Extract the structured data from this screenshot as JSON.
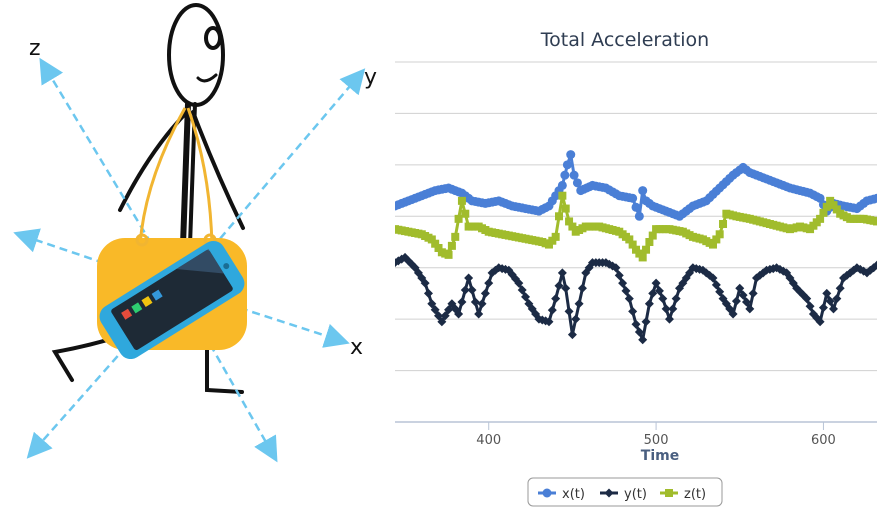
{
  "illustration": {
    "axis_labels": {
      "z": "z",
      "y": "y",
      "x": "x"
    },
    "colors": {
      "axis": "#6cc7ef",
      "bag": "#f9b928",
      "strap": "#f1b531",
      "phone_body": "#2fa8dd",
      "phone_screen": "#1e2a36"
    }
  },
  "chart_data": {
    "type": "line",
    "title": "Total Acceleration",
    "xlabel": "Time",
    "ylabel": "",
    "xlim": [
      344,
      632
    ],
    "ylim": [
      0,
      7
    ],
    "x_ticks": [
      400,
      500,
      600
    ],
    "grid": true,
    "legend_position": "bottom-center",
    "series": [
      {
        "name": "x(t)",
        "color": "#4a7fd6",
        "marker": "circle",
        "points": [
          [
            344,
            4.2
          ],
          [
            352,
            4.3
          ],
          [
            360,
            4.4
          ],
          [
            368,
            4.5
          ],
          [
            376,
            4.55
          ],
          [
            384,
            4.45
          ],
          [
            390,
            4.3
          ],
          [
            398,
            4.25
          ],
          [
            406,
            4.3
          ],
          [
            414,
            4.2
          ],
          [
            422,
            4.15
          ],
          [
            430,
            4.1
          ],
          [
            436,
            4.2
          ],
          [
            440,
            4.4
          ],
          [
            444,
            4.6
          ],
          [
            447,
            5.0
          ],
          [
            449,
            5.2
          ],
          [
            451,
            4.8
          ],
          [
            455,
            4.5
          ],
          [
            462,
            4.6
          ],
          [
            470,
            4.55
          ],
          [
            478,
            4.4
          ],
          [
            486,
            4.35
          ],
          [
            490,
            4.0
          ],
          [
            492,
            4.5
          ],
          [
            494,
            4.3
          ],
          [
            498,
            4.2
          ],
          [
            506,
            4.1
          ],
          [
            514,
            4.0
          ],
          [
            522,
            4.2
          ],
          [
            530,
            4.3
          ],
          [
            538,
            4.55
          ],
          [
            546,
            4.8
          ],
          [
            552,
            4.95
          ],
          [
            556,
            4.85
          ],
          [
            564,
            4.75
          ],
          [
            572,
            4.65
          ],
          [
            580,
            4.55
          ],
          [
            586,
            4.5
          ],
          [
            592,
            4.45
          ],
          [
            598,
            4.35
          ],
          [
            602,
            4.1
          ],
          [
            606,
            4.25
          ],
          [
            612,
            4.2
          ],
          [
            620,
            4.15
          ],
          [
            626,
            4.3
          ],
          [
            632,
            4.35
          ]
        ]
      },
      {
        "name": "y(t)",
        "color": "#1c2b45",
        "marker": "diamond",
        "points": [
          [
            344,
            3.1
          ],
          [
            350,
            3.2
          ],
          [
            356,
            3.0
          ],
          [
            362,
            2.7
          ],
          [
            366,
            2.3
          ],
          [
            372,
            1.95
          ],
          [
            378,
            2.3
          ],
          [
            382,
            2.1
          ],
          [
            388,
            2.8
          ],
          [
            394,
            2.1
          ],
          [
            398,
            2.5
          ],
          [
            402,
            2.9
          ],
          [
            406,
            3.0
          ],
          [
            412,
            2.95
          ],
          [
            418,
            2.7
          ],
          [
            424,
            2.3
          ],
          [
            430,
            2.0
          ],
          [
            436,
            1.95
          ],
          [
            440,
            2.4
          ],
          [
            444,
            2.9
          ],
          [
            446,
            2.6
          ],
          [
            450,
            1.7
          ],
          [
            454,
            2.3
          ],
          [
            458,
            2.9
          ],
          [
            462,
            3.1
          ],
          [
            470,
            3.1
          ],
          [
            476,
            3.0
          ],
          [
            480,
            2.7
          ],
          [
            484,
            2.4
          ],
          [
            488,
            1.9
          ],
          [
            492,
            1.6
          ],
          [
            496,
            2.3
          ],
          [
            500,
            2.7
          ],
          [
            504,
            2.4
          ],
          [
            508,
            2.0
          ],
          [
            514,
            2.6
          ],
          [
            522,
            3.0
          ],
          [
            528,
            2.95
          ],
          [
            534,
            2.8
          ],
          [
            540,
            2.4
          ],
          [
            546,
            2.1
          ],
          [
            550,
            2.6
          ],
          [
            556,
            2.2
          ],
          [
            560,
            2.8
          ],
          [
            566,
            2.95
          ],
          [
            572,
            3.0
          ],
          [
            578,
            2.9
          ],
          [
            584,
            2.6
          ],
          [
            590,
            2.4
          ],
          [
            594,
            2.1
          ],
          [
            598,
            1.95
          ],
          [
            602,
            2.5
          ],
          [
            606,
            2.2
          ],
          [
            612,
            2.8
          ],
          [
            620,
            3.0
          ],
          [
            626,
            2.9
          ],
          [
            632,
            3.05
          ]
        ]
      },
      {
        "name": "z(t)",
        "color": "#a1bc2c",
        "marker": "square",
        "points": [
          [
            344,
            3.75
          ],
          [
            352,
            3.7
          ],
          [
            360,
            3.65
          ],
          [
            366,
            3.55
          ],
          [
            372,
            3.3
          ],
          [
            376,
            3.25
          ],
          [
            380,
            3.6
          ],
          [
            384,
            4.3
          ],
          [
            388,
            3.8
          ],
          [
            394,
            3.8
          ],
          [
            400,
            3.7
          ],
          [
            408,
            3.65
          ],
          [
            416,
            3.6
          ],
          [
            424,
            3.55
          ],
          [
            432,
            3.5
          ],
          [
            436,
            3.45
          ],
          [
            440,
            3.6
          ],
          [
            444,
            4.4
          ],
          [
            448,
            3.9
          ],
          [
            452,
            3.7
          ],
          [
            458,
            3.8
          ],
          [
            466,
            3.8
          ],
          [
            472,
            3.75
          ],
          [
            478,
            3.7
          ],
          [
            484,
            3.55
          ],
          [
            488,
            3.35
          ],
          [
            492,
            3.2
          ],
          [
            496,
            3.5
          ],
          [
            500,
            3.75
          ],
          [
            508,
            3.75
          ],
          [
            516,
            3.7
          ],
          [
            522,
            3.6
          ],
          [
            528,
            3.55
          ],
          [
            534,
            3.45
          ],
          [
            538,
            3.65
          ],
          [
            542,
            4.05
          ],
          [
            548,
            4.0
          ],
          [
            556,
            3.95
          ],
          [
            562,
            3.9
          ],
          [
            568,
            3.85
          ],
          [
            574,
            3.8
          ],
          [
            580,
            3.75
          ],
          [
            586,
            3.8
          ],
          [
            592,
            3.75
          ],
          [
            598,
            3.95
          ],
          [
            604,
            4.3
          ],
          [
            610,
            4.05
          ],
          [
            616,
            3.95
          ],
          [
            624,
            3.95
          ],
          [
            632,
            3.9
          ]
        ]
      }
    ]
  }
}
